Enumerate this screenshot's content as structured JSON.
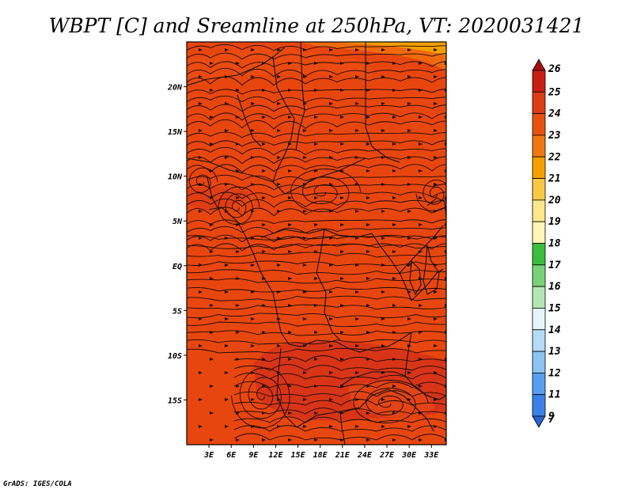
{
  "title": "WBPT [C] and Sreamline at 250hPa, VT: 2020031421",
  "credit": "GrADS: IGES/COLA",
  "map": {
    "lon_range": [
      0,
      35
    ],
    "lat_range": [
      -20,
      25
    ],
    "lat_ticks": [
      {
        "value": 20,
        "label": "20N"
      },
      {
        "value": 15,
        "label": "15N"
      },
      {
        "value": 10,
        "label": "10N"
      },
      {
        "value": 5,
        "label": "5N"
      },
      {
        "value": 0,
        "label": "EQ"
      },
      {
        "value": -5,
        "label": "5S"
      },
      {
        "value": -10,
        "label": "10S"
      },
      {
        "value": -15,
        "label": "15S"
      }
    ],
    "lon_ticks": [
      {
        "value": 3,
        "label": "3E"
      },
      {
        "value": 6,
        "label": "6E"
      },
      {
        "value": 9,
        "label": "9E"
      },
      {
        "value": 12,
        "label": "12E"
      },
      {
        "value": 15,
        "label": "15E"
      },
      {
        "value": 18,
        "label": "18E"
      },
      {
        "value": 21,
        "label": "21E"
      },
      {
        "value": 24,
        "label": "24E"
      },
      {
        "value": 27,
        "label": "27E"
      },
      {
        "value": 30,
        "label": "30E"
      },
      {
        "value": 33,
        "label": "33E"
      }
    ],
    "base_color": "#e8460f",
    "field_regions": [
      {
        "level": "23-24",
        "color": "#e8460f"
      },
      {
        "level": "24-25",
        "color": "#d83418"
      },
      {
        "level": "22-23",
        "color": "#f06a0c"
      },
      {
        "level": "21-22",
        "color": "#f5a000"
      }
    ]
  },
  "colorbar": {
    "levels": [
      {
        "label": "26",
        "color": "#a50f0f"
      },
      {
        "label": "25",
        "color": "#c81e14"
      },
      {
        "label": "24",
        "color": "#dc3c14"
      },
      {
        "label": "23",
        "color": "#e8520f"
      },
      {
        "label": "22",
        "color": "#f07814"
      },
      {
        "label": "21",
        "color": "#f5a000"
      },
      {
        "label": "20",
        "color": "#fac846"
      },
      {
        "label": "19",
        "color": "#fde68c"
      },
      {
        "label": "18",
        "color": "#fff5b4"
      },
      {
        "label": "17",
        "color": "#3cbe3c"
      },
      {
        "label": "16",
        "color": "#78d278"
      },
      {
        "label": "15",
        "color": "#b4e6b4"
      },
      {
        "label": "14",
        "color": "#e6f5fa"
      },
      {
        "label": "13",
        "color": "#b4dcf5"
      },
      {
        "label": "12",
        "color": "#8cc3f0"
      },
      {
        "label": "11",
        "color": "#5aa0f0"
      },
      {
        "label": "9",
        "color": "#3c82e6"
      },
      {
        "label": "7",
        "color": "#2864d2"
      }
    ]
  }
}
